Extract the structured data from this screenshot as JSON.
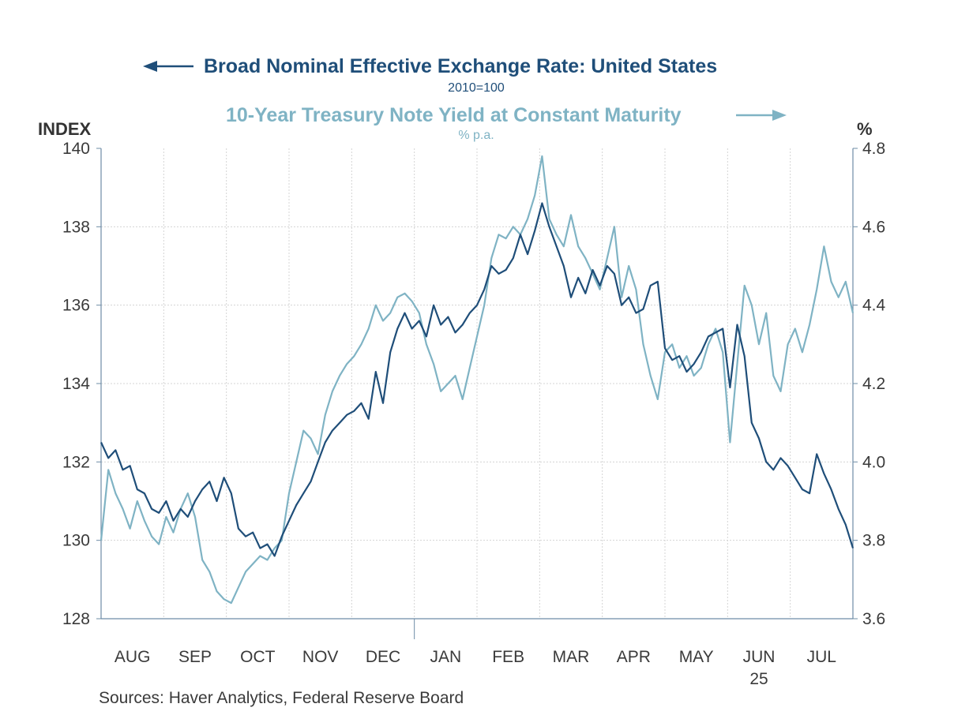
{
  "colors": {
    "exchange": "#1f4e79",
    "treasury": "#7fb3c4",
    "grid": "#d4d4d4",
    "axis": "#6e8ca6"
  },
  "titles": {
    "exchange_title": "Broad Nominal Effective Exchange Rate: United States",
    "exchange_sub": "2010=100",
    "treasury_title": "10-Year Treasury Note Yield at Constant Maturity",
    "treasury_sub": "% p.a.",
    "left_unit": "INDEX",
    "right_unit": "%"
  },
  "source": "Sources:  Haver Analytics, Federal Reserve Board",
  "chart_data": {
    "type": "line",
    "x_unit": "weeks from start of Aug 2024 (approx. trading-day samples)",
    "x_range": [
      0,
      52
    ],
    "month_labels": [
      "AUG",
      "SEP",
      "OCT",
      "NOV",
      "DEC",
      "JAN",
      "FEB",
      "MAR",
      "APR",
      "MAY",
      "JUN",
      "JUL"
    ],
    "year_label": "25",
    "y_left": {
      "label": "INDEX",
      "range": [
        128,
        140
      ],
      "ticks": [
        "128",
        "130",
        "132",
        "134",
        "136",
        "138",
        "140"
      ]
    },
    "y_right": {
      "label": "%",
      "range": [
        3.6,
        4.8
      ],
      "ticks": [
        "3.6",
        "3.8",
        "4.0",
        "4.2",
        "4.4",
        "4.6",
        "4.8"
      ]
    },
    "grid": true,
    "series": [
      {
        "name": "Broad Nominal Effective Exchange Rate: United States",
        "axis": "left",
        "points": [
          [
            0,
            132.5
          ],
          [
            0.5,
            132.1
          ],
          [
            1,
            132.3
          ],
          [
            1.5,
            131.8
          ],
          [
            2,
            131.9
          ],
          [
            2.5,
            131.3
          ],
          [
            3,
            131.2
          ],
          [
            3.5,
            130.8
          ],
          [
            4,
            130.7
          ],
          [
            4.5,
            131.0
          ],
          [
            5,
            130.5
          ],
          [
            5.5,
            130.8
          ],
          [
            6,
            130.6
          ],
          [
            6.5,
            131.0
          ],
          [
            7,
            131.3
          ],
          [
            7.5,
            131.5
          ],
          [
            8,
            131.0
          ],
          [
            8.5,
            131.6
          ],
          [
            9,
            131.2
          ],
          [
            9.5,
            130.3
          ],
          [
            10,
            130.1
          ],
          [
            10.5,
            130.2
          ],
          [
            11,
            129.8
          ],
          [
            11.5,
            129.9
          ],
          [
            12,
            129.6
          ],
          [
            12.5,
            130.1
          ],
          [
            13,
            130.5
          ],
          [
            13.5,
            130.9
          ],
          [
            14,
            131.2
          ],
          [
            14.5,
            131.5
          ],
          [
            15,
            132.0
          ],
          [
            15.5,
            132.5
          ],
          [
            16,
            132.8
          ],
          [
            16.5,
            133.0
          ],
          [
            17,
            133.2
          ],
          [
            17.5,
            133.3
          ],
          [
            18,
            133.5
          ],
          [
            18.5,
            133.1
          ],
          [
            19,
            134.3
          ],
          [
            19.5,
            133.5
          ],
          [
            20,
            134.8
          ],
          [
            20.5,
            135.4
          ],
          [
            21,
            135.8
          ],
          [
            21.5,
            135.4
          ],
          [
            22,
            135.6
          ],
          [
            22.5,
            135.2
          ],
          [
            23,
            136.0
          ],
          [
            23.5,
            135.5
          ],
          [
            24,
            135.7
          ],
          [
            24.5,
            135.3
          ],
          [
            25,
            135.5
          ],
          [
            25.5,
            135.8
          ],
          [
            26,
            136.0
          ],
          [
            26.5,
            136.4
          ],
          [
            27,
            137.0
          ],
          [
            27.5,
            136.8
          ],
          [
            28,
            136.9
          ],
          [
            28.5,
            137.2
          ],
          [
            29,
            137.8
          ],
          [
            29.5,
            137.3
          ],
          [
            30,
            137.9
          ],
          [
            30.5,
            138.6
          ],
          [
            31,
            138.0
          ],
          [
            31.5,
            137.5
          ],
          [
            32,
            137.0
          ],
          [
            32.5,
            136.2
          ],
          [
            33,
            136.7
          ],
          [
            33.5,
            136.3
          ],
          [
            34,
            136.9
          ],
          [
            34.5,
            136.5
          ],
          [
            35,
            137.0
          ],
          [
            35.5,
            136.8
          ],
          [
            36,
            136.0
          ],
          [
            36.5,
            136.2
          ],
          [
            37,
            135.8
          ],
          [
            37.5,
            135.9
          ],
          [
            38,
            136.5
          ],
          [
            38.5,
            136.6
          ],
          [
            39,
            134.9
          ],
          [
            39.5,
            134.6
          ],
          [
            40,
            134.7
          ],
          [
            40.5,
            134.3
          ],
          [
            41,
            134.5
          ],
          [
            41.5,
            134.8
          ],
          [
            42,
            135.2
          ],
          [
            42.5,
            135.3
          ],
          [
            43,
            135.4
          ],
          [
            43.5,
            133.9
          ],
          [
            44,
            135.5
          ],
          [
            44.5,
            134.7
          ],
          [
            45,
            133.0
          ],
          [
            45.5,
            132.6
          ],
          [
            46,
            132.0
          ],
          [
            46.5,
            131.8
          ],
          [
            47,
            132.1
          ],
          [
            47.5,
            131.9
          ],
          [
            48,
            131.6
          ],
          [
            48.5,
            131.3
          ],
          [
            49,
            131.2
          ],
          [
            49.5,
            132.2
          ],
          [
            50,
            131.7
          ],
          [
            50.5,
            131.3
          ],
          [
            51,
            130.8
          ],
          [
            51.5,
            130.4
          ],
          [
            52,
            129.8
          ]
        ]
      },
      {
        "name": "10-Year Treasury Note Yield at Constant Maturity",
        "axis": "right",
        "points": [
          [
            0,
            3.8
          ],
          [
            0.5,
            3.98
          ],
          [
            1,
            3.92
          ],
          [
            1.5,
            3.88
          ],
          [
            2,
            3.83
          ],
          [
            2.5,
            3.9
          ],
          [
            3,
            3.85
          ],
          [
            3.5,
            3.81
          ],
          [
            4,
            3.79
          ],
          [
            4.5,
            3.86
          ],
          [
            5,
            3.82
          ],
          [
            5.5,
            3.88
          ],
          [
            6,
            3.92
          ],
          [
            6.5,
            3.86
          ],
          [
            7,
            3.75
          ],
          [
            7.5,
            3.72
          ],
          [
            8,
            3.67
          ],
          [
            8.5,
            3.65
          ],
          [
            9,
            3.64
          ],
          [
            9.5,
            3.68
          ],
          [
            10,
            3.72
          ],
          [
            10.5,
            3.74
          ],
          [
            11,
            3.76
          ],
          [
            11.5,
            3.75
          ],
          [
            12,
            3.78
          ],
          [
            12.5,
            3.8
          ],
          [
            13,
            3.92
          ],
          [
            13.5,
            4.0
          ],
          [
            14,
            4.08
          ],
          [
            14.5,
            4.06
          ],
          [
            15,
            4.02
          ],
          [
            15.5,
            4.12
          ],
          [
            16,
            4.18
          ],
          [
            16.5,
            4.22
          ],
          [
            17,
            4.25
          ],
          [
            17.5,
            4.27
          ],
          [
            18,
            4.3
          ],
          [
            18.5,
            4.34
          ],
          [
            19,
            4.4
          ],
          [
            19.5,
            4.36
          ],
          [
            20,
            4.38
          ],
          [
            20.5,
            4.42
          ],
          [
            21,
            4.43
          ],
          [
            21.5,
            4.41
          ],
          [
            22,
            4.38
          ],
          [
            22.5,
            4.3
          ],
          [
            23,
            4.25
          ],
          [
            23.5,
            4.18
          ],
          [
            24,
            4.2
          ],
          [
            24.5,
            4.22
          ],
          [
            25,
            4.16
          ],
          [
            25.5,
            4.24
          ],
          [
            26,
            4.32
          ],
          [
            26.5,
            4.4
          ],
          [
            27,
            4.52
          ],
          [
            27.5,
            4.58
          ],
          [
            28,
            4.57
          ],
          [
            28.5,
            4.6
          ],
          [
            29,
            4.58
          ],
          [
            29.5,
            4.62
          ],
          [
            30,
            4.68
          ],
          [
            30.5,
            4.78
          ],
          [
            31,
            4.62
          ],
          [
            31.5,
            4.58
          ],
          [
            32,
            4.55
          ],
          [
            32.5,
            4.63
          ],
          [
            33,
            4.55
          ],
          [
            33.5,
            4.52
          ],
          [
            34,
            4.48
          ],
          [
            34.5,
            4.44
          ],
          [
            35,
            4.52
          ],
          [
            35.5,
            4.6
          ],
          [
            36,
            4.42
          ],
          [
            36.5,
            4.5
          ],
          [
            37,
            4.44
          ],
          [
            37.5,
            4.3
          ],
          [
            38,
            4.22
          ],
          [
            38.5,
            4.16
          ],
          [
            39,
            4.28
          ],
          [
            39.5,
            4.3
          ],
          [
            40,
            4.24
          ],
          [
            40.5,
            4.27
          ],
          [
            41,
            4.22
          ],
          [
            41.5,
            4.24
          ],
          [
            42,
            4.3
          ],
          [
            42.5,
            4.34
          ],
          [
            43,
            4.28
          ],
          [
            43.5,
            4.05
          ],
          [
            44,
            4.25
          ],
          [
            44.5,
            4.45
          ],
          [
            45,
            4.4
          ],
          [
            45.5,
            4.3
          ],
          [
            46,
            4.38
          ],
          [
            46.5,
            4.22
          ],
          [
            47,
            4.18
          ],
          [
            47.5,
            4.3
          ],
          [
            48,
            4.34
          ],
          [
            48.5,
            4.28
          ],
          [
            49,
            4.35
          ],
          [
            49.5,
            4.44
          ],
          [
            50,
            4.55
          ],
          [
            50.5,
            4.46
          ],
          [
            51,
            4.42
          ],
          [
            51.5,
            4.46
          ],
          [
            52,
            4.38
          ]
        ]
      }
    ]
  }
}
